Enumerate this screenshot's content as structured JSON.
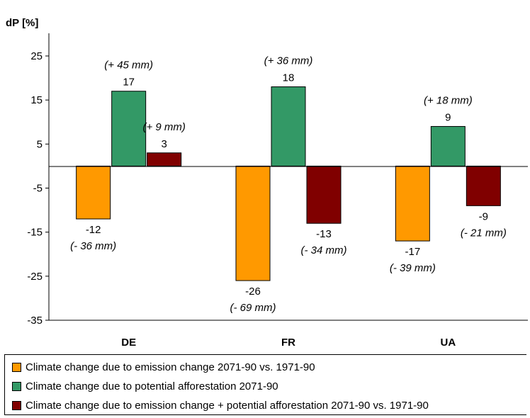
{
  "chart_data": {
    "type": "bar",
    "ylabel": "dP [%]",
    "ylim": [
      -35,
      25
    ],
    "yticks": [
      25,
      15,
      5,
      -5,
      -15,
      -25,
      -35
    ],
    "categories": [
      "DE",
      "FR",
      "UA"
    ],
    "grid": false,
    "legend_position": "bottom",
    "series": [
      {
        "name": "Climate change due to emission change 2071-90 vs. 1971-90",
        "color": "#FF9900",
        "values": [
          -12,
          -26,
          -17
        ],
        "value_labels": [
          "-12",
          "-26",
          "-17"
        ],
        "annotations": [
          "(- 36 mm)",
          "(- 69 mm)",
          "(- 39 mm)"
        ]
      },
      {
        "name": "Climate change due to potential afforestation 2071-90",
        "color": "#339966",
        "values": [
          17,
          18,
          9
        ],
        "value_labels": [
          "17",
          "18",
          "9"
        ],
        "annotations": [
          "(+ 45 mm)",
          "(+ 36 mm)",
          "(+ 18 mm)"
        ]
      },
      {
        "name": "Climate change due to emission change + potential afforestation 2071-90 vs. 1971-90",
        "color": "#800000",
        "values": [
          3,
          -13,
          -9
        ],
        "value_labels": [
          "3",
          "-13",
          "-9"
        ],
        "annotations": [
          "(+ 9 mm)",
          "(- 34 mm)",
          "(- 21 mm)"
        ]
      }
    ]
  }
}
